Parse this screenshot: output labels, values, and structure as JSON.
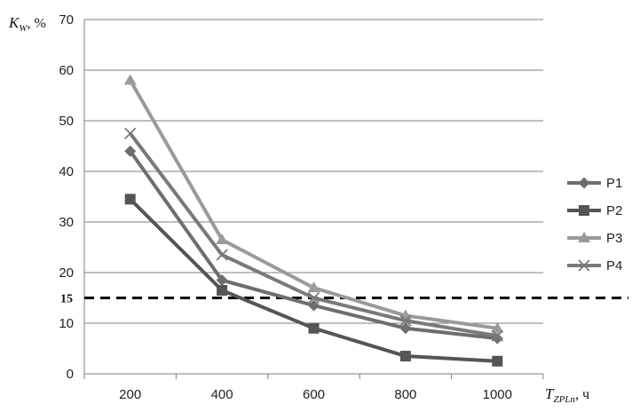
{
  "chart_data": {
    "type": "line",
    "title": "",
    "ylabel": "K",
    "ylabel_sub": "W",
    "ylabel_suffix": ", %",
    "xlabel": "T",
    "xlabel_sub": "ZPLn",
    "xlabel_suffix": ", ч",
    "x": [
      200,
      400,
      600,
      800,
      1000
    ],
    "xlim": [
      100,
      1100
    ],
    "ylim": [
      0,
      70
    ],
    "yticks": [
      0,
      10,
      20,
      30,
      40,
      50,
      60,
      70
    ],
    "grid": true,
    "legend_position": "right",
    "threshold": {
      "value": 15,
      "label": "15",
      "style": "dashed"
    },
    "series": [
      {
        "name": "P1",
        "marker": "diamond",
        "color": "#6e6e6e",
        "values": [
          44,
          18.5,
          13.5,
          9,
          7
        ]
      },
      {
        "name": "P2",
        "marker": "square",
        "color": "#555555",
        "values": [
          34.5,
          16.5,
          9,
          3.5,
          2.5
        ]
      },
      {
        "name": "P3",
        "marker": "triangle",
        "color": "#9a9a9a",
        "values": [
          58,
          26.5,
          17,
          11.5,
          9
        ]
      },
      {
        "name": "P4",
        "marker": "x",
        "color": "#7a7a7a",
        "values": [
          47.5,
          23.5,
          15,
          10.5,
          7.5
        ]
      }
    ]
  }
}
